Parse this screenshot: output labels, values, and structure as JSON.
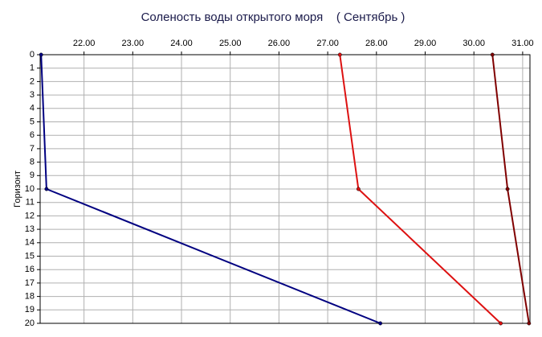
{
  "chart_data": {
    "type": "line",
    "title": "Соленость воды открытого моря    ( Сентябрь )",
    "y_label": "Горизонт",
    "y": [
      0,
      10,
      20
    ],
    "series": [
      {
        "color": "#000080",
        "values": [
          21.12,
          21.23,
          28.08
        ]
      },
      {
        "color": "#dd1111",
        "values": [
          27.25,
          27.63,
          30.55
        ]
      },
      {
        "color": "#800000",
        "values": [
          30.38,
          30.69,
          31.13
        ]
      }
    ],
    "xlim": [
      21.1,
      31.15
    ],
    "xticks": [
      {
        "value": 22,
        "label": "22.00"
      },
      {
        "value": 23,
        "label": "23.00"
      },
      {
        "value": 24,
        "label": "24.00"
      },
      {
        "value": 25,
        "label": "25.00"
      },
      {
        "value": 26,
        "label": "26.00"
      },
      {
        "value": 27,
        "label": "27.00"
      },
      {
        "value": 28,
        "label": "28.00"
      },
      {
        "value": 29,
        "label": "29.00"
      },
      {
        "value": 30,
        "label": "30.00"
      },
      {
        "value": 31,
        "label": "31.00"
      }
    ],
    "ylim": [
      0,
      20
    ],
    "yticks": [
      0,
      1,
      2,
      3,
      4,
      5,
      6,
      7,
      8,
      9,
      10,
      11,
      12,
      13,
      14,
      15,
      16,
      17,
      18,
      19,
      20
    ],
    "grid": true
  }
}
